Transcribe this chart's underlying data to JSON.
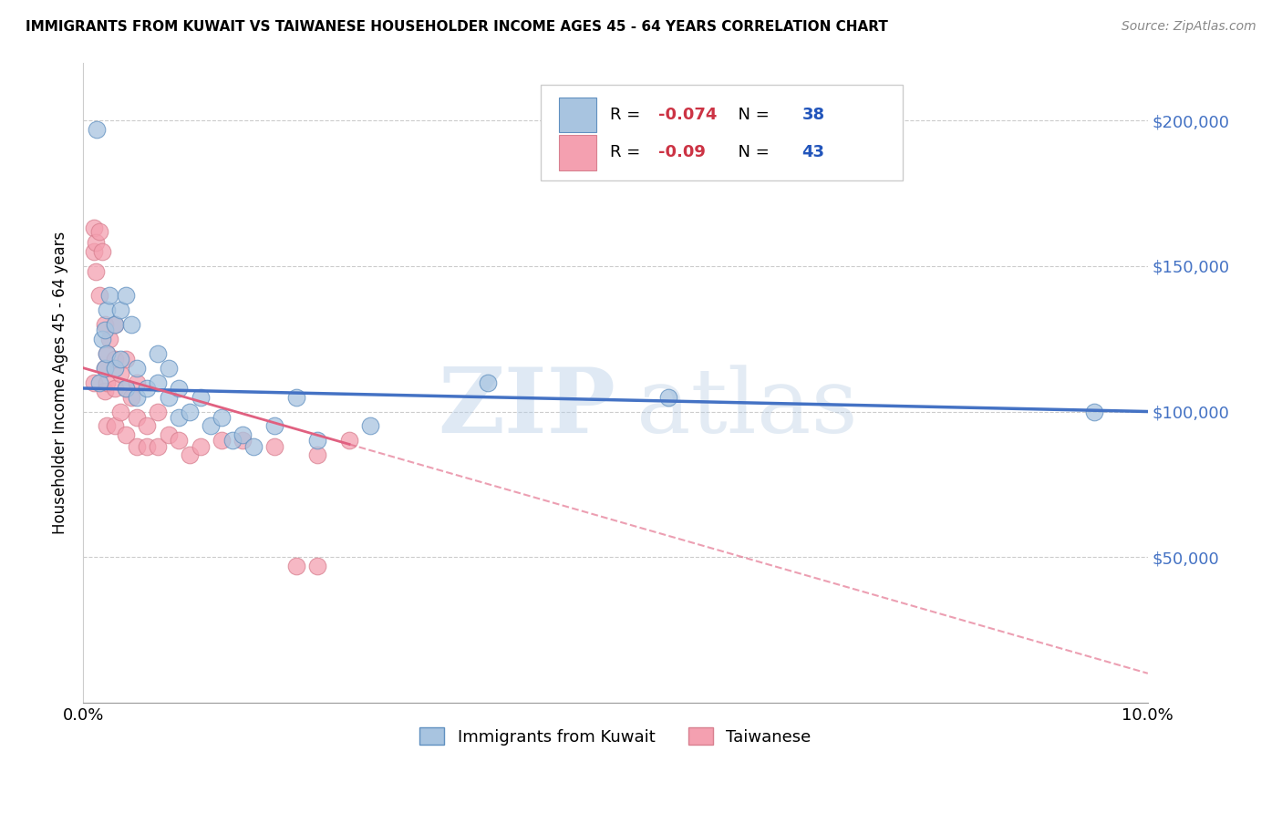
{
  "title": "IMMIGRANTS FROM KUWAIT VS TAIWANESE HOUSEHOLDER INCOME AGES 45 - 64 YEARS CORRELATION CHART",
  "source": "Source: ZipAtlas.com",
  "ylabel": "Householder Income Ages 45 - 64 years",
  "xlim": [
    0.0,
    0.1
  ],
  "ylim": [
    0,
    220000
  ],
  "yticks": [
    0,
    50000,
    100000,
    150000,
    200000
  ],
  "ytick_labels": [
    "",
    "$50,000",
    "$100,000",
    "$150,000",
    "$200,000"
  ],
  "xticks": [
    0.0,
    0.02,
    0.04,
    0.06,
    0.08,
    0.1
  ],
  "xtick_labels": [
    "0.0%",
    "",
    "",
    "",
    "",
    "10.0%"
  ],
  "kuwait_color": "#a8c4e0",
  "taiwanese_color": "#f4a0b0",
  "kuwait_line_color": "#4472c4",
  "taiwanese_line_color": "#e06080",
  "R_kuwait": -0.074,
  "N_kuwait": 38,
  "R_taiwanese": -0.09,
  "N_taiwanese": 43,
  "legend_label_kuwait": "Immigrants from Kuwait",
  "legend_label_taiwanese": "Taiwanese",
  "kuwait_points_x": [
    0.0013,
    0.0015,
    0.0018,
    0.002,
    0.002,
    0.0022,
    0.0022,
    0.0025,
    0.003,
    0.003,
    0.0035,
    0.0035,
    0.004,
    0.004,
    0.0045,
    0.005,
    0.005,
    0.006,
    0.007,
    0.007,
    0.008,
    0.008,
    0.009,
    0.009,
    0.01,
    0.011,
    0.012,
    0.013,
    0.014,
    0.015,
    0.016,
    0.018,
    0.02,
    0.022,
    0.027,
    0.038,
    0.055,
    0.095
  ],
  "kuwait_points_y": [
    197000,
    110000,
    125000,
    128000,
    115000,
    135000,
    120000,
    140000,
    130000,
    115000,
    135000,
    118000,
    140000,
    108000,
    130000,
    115000,
    105000,
    108000,
    120000,
    110000,
    105000,
    115000,
    108000,
    98000,
    100000,
    105000,
    95000,
    98000,
    90000,
    92000,
    88000,
    95000,
    105000,
    90000,
    95000,
    110000,
    105000,
    100000
  ],
  "taiwanese_points_x": [
    0.001,
    0.001,
    0.001,
    0.0012,
    0.0012,
    0.0015,
    0.0015,
    0.0018,
    0.002,
    0.002,
    0.002,
    0.0022,
    0.0022,
    0.0022,
    0.0025,
    0.003,
    0.003,
    0.003,
    0.003,
    0.0035,
    0.0035,
    0.004,
    0.004,
    0.004,
    0.0045,
    0.005,
    0.005,
    0.005,
    0.006,
    0.006,
    0.007,
    0.007,
    0.008,
    0.009,
    0.01,
    0.011,
    0.013,
    0.015,
    0.018,
    0.02,
    0.022,
    0.022,
    0.025
  ],
  "taiwanese_points_y": [
    163000,
    155000,
    110000,
    158000,
    148000,
    162000,
    140000,
    155000,
    130000,
    115000,
    107000,
    120000,
    110000,
    95000,
    125000,
    130000,
    118000,
    108000,
    95000,
    113000,
    100000,
    118000,
    108000,
    92000,
    105000,
    110000,
    98000,
    88000,
    95000,
    88000,
    100000,
    88000,
    92000,
    90000,
    85000,
    88000,
    90000,
    90000,
    88000,
    47000,
    47000,
    85000,
    90000
  ]
}
